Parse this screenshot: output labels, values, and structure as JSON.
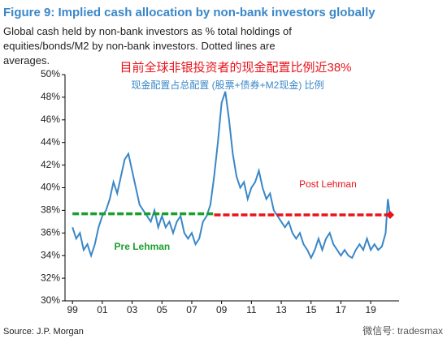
{
  "chart_data": {
    "type": "line",
    "title": "Figure 9: Implied cash allocation by non-bank investors globally",
    "subtitle": "Global cash held by non-bank investors as % total holdings of equities/bonds/M2 by non-bank investors. Dotted lines are averages.",
    "annotations": [
      "目前全球非银投资者的现金配置比例近38%",
      "现金配置占总配置 (股票+债券+M2现金) 比例"
    ],
    "source": "Source: J.P. Morgan",
    "watermark": "微信号: tradesmax",
    "x": [
      1999,
      1999.25,
      1999.5,
      1999.75,
      2000,
      2000.25,
      2000.5,
      2000.75,
      2001,
      2001.25,
      2001.5,
      2001.75,
      2002,
      2002.25,
      2002.5,
      2002.75,
      2003,
      2003.25,
      2003.5,
      2003.75,
      2004,
      2004.25,
      2004.5,
      2004.75,
      2005,
      2005.25,
      2005.5,
      2005.75,
      2006,
      2006.25,
      2006.5,
      2006.75,
      2007,
      2007.25,
      2007.5,
      2007.75,
      2008,
      2008.25,
      2008.5,
      2008.75,
      2009,
      2009.25,
      2009.5,
      2009.75,
      2010,
      2010.25,
      2010.5,
      2010.75,
      2011,
      2011.25,
      2011.5,
      2011.75,
      2012,
      2012.25,
      2012.5,
      2012.75,
      2013,
      2013.25,
      2013.5,
      2013.75,
      2014,
      2014.25,
      2014.5,
      2014.75,
      2015,
      2015.25,
      2015.5,
      2015.75,
      2016,
      2016.25,
      2016.5,
      2016.75,
      2017,
      2017.25,
      2017.5,
      2017.75,
      2018,
      2018.25,
      2018.5,
      2018.75,
      2019,
      2019.25,
      2019.5,
      2019.75,
      2020,
      2020.15,
      2020.3
    ],
    "series": [
      {
        "color": "#3a87c8",
        "values": [
          36.5,
          35.5,
          36,
          34.5,
          35,
          34,
          35,
          36.5,
          37.5,
          38,
          39,
          40.5,
          39.5,
          41,
          42.5,
          43,
          41.5,
          40,
          38.5,
          38,
          37.5,
          37,
          38,
          36.5,
          37.5,
          36.5,
          37,
          36,
          37,
          37.5,
          36,
          35.5,
          36,
          35,
          35.5,
          37,
          37.5,
          38.5,
          41,
          44,
          47.5,
          48.5,
          46,
          43,
          41,
          40,
          40.5,
          39,
          40,
          40.5,
          41.5,
          40,
          39,
          39.5,
          38,
          37.5,
          37,
          36.5,
          37,
          36,
          35.5,
          36,
          35,
          34.5,
          33.8,
          34.5,
          35.5,
          34.5,
          35.5,
          36,
          35,
          34.5,
          34,
          34.5,
          34,
          33.8,
          34.5,
          35,
          34.5,
          35.5,
          34.5,
          35,
          34.5,
          34.8,
          36,
          39,
          37.5
        ]
      }
    ],
    "averages": [
      {
        "label": "Pre Lehman",
        "value": 37.7,
        "x": [
          1999,
          2008.5
        ],
        "color": "#1a9e2e"
      },
      {
        "label": "Post Lehman",
        "value": 37.6,
        "x": [
          2008.5,
          2020.3
        ],
        "color": "#e8141b"
      }
    ],
    "xlim": [
      1998.5,
      2020.9
    ],
    "xticks": [
      {
        "value": 1999,
        "label": "99"
      },
      {
        "value": 2001,
        "label": "01"
      },
      {
        "value": 2003,
        "label": "03"
      },
      {
        "value": 2005,
        "label": "05"
      },
      {
        "value": 2007,
        "label": "07"
      },
      {
        "value": 2009,
        "label": "09"
      },
      {
        "value": 2011,
        "label": "11"
      },
      {
        "value": 2013,
        "label": "13"
      },
      {
        "value": 2015,
        "label": "15"
      },
      {
        "value": 2017,
        "label": "17"
      },
      {
        "value": 2019,
        "label": "19"
      }
    ],
    "ylim": [
      30,
      50
    ],
    "yticks": [
      {
        "value": 30,
        "label": "30%"
      },
      {
        "value": 32,
        "label": "32%"
      },
      {
        "value": 34,
        "label": "34%"
      },
      {
        "value": 36,
        "label": "36%"
      },
      {
        "value": 38,
        "label": "38%"
      },
      {
        "value": 40,
        "label": "40%"
      },
      {
        "value": 42,
        "label": "42%"
      },
      {
        "value": 44,
        "label": "44%"
      },
      {
        "value": 46,
        "label": "46%"
      },
      {
        "value": 48,
        "label": "48%"
      },
      {
        "value": 50,
        "label": "50%"
      }
    ]
  }
}
